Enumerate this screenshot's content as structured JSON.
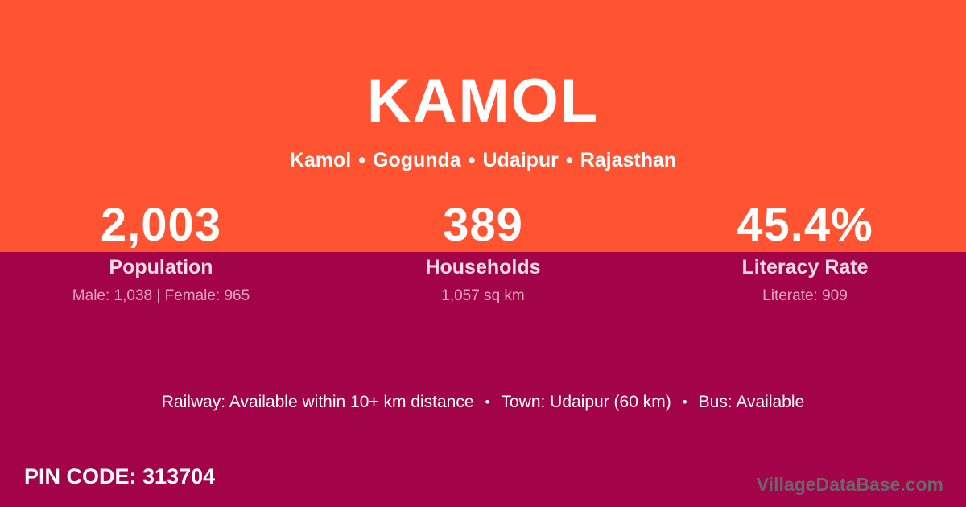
{
  "card": {
    "title": "KAMOL",
    "breadcrumb": {
      "items": [
        "Kamol",
        "Gogunda",
        "Udaipur",
        "Rajasthan"
      ],
      "separator": "•"
    },
    "stats": [
      {
        "value": "2,003",
        "label": "Population",
        "detail": "Male: 1,038 | Female: 965"
      },
      {
        "value": "389",
        "label": "Households",
        "detail": "1,057 sq km"
      },
      {
        "value": "45.4%",
        "label": "Literacy Rate",
        "detail": "Literate: 909"
      }
    ],
    "transport": {
      "items": [
        "Railway: Available within 10+ km distance",
        "Town: Udaipur (60 km)",
        "Bus: Available"
      ],
      "separator": "•"
    },
    "footer": {
      "pin_label": "PIN CODE:",
      "pin_value": "313704",
      "watermark": "VillageDataBase.com"
    }
  },
  "colors": {
    "orange": "#FF5332",
    "maroon": "#A30349",
    "white": "#FFFFFF",
    "label_pink": "#F6DCE6",
    "detail_pink": "#E2A6BD",
    "watermark_gray": "#6E646C"
  }
}
